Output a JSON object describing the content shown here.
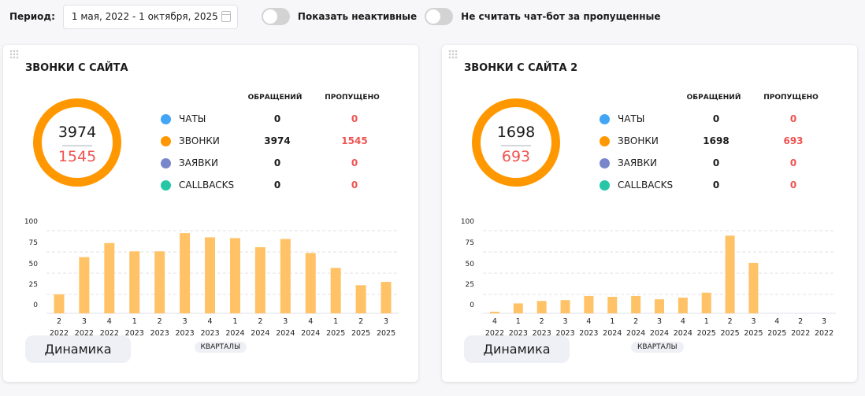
{
  "filters": {
    "period_label": "Период:",
    "period_value": "1 мая, 2022 - 1 октября, 2025",
    "show_inactive_label": "Показать неактивные",
    "show_inactive": false,
    "chatbot_label": "Не считать чат-бот за пропущенные",
    "chatbot": false
  },
  "columns": {
    "requests": "ОБРАЩЕНИЙ",
    "missed": "ПРОПУЩЕНО"
  },
  "colors": {
    "chats": "#42a5f5",
    "calls": "#ff9800",
    "requests": "#7986cb",
    "callbacks": "#26c6a6",
    "missed": "#ef5350",
    "bar": "#ffc266"
  },
  "cards": [
    {
      "title": "ЗВОНКИ С САЙТА",
      "total": "3974",
      "missed": "1545",
      "rows": [
        {
          "name": "ЧАТЫ",
          "count": "0",
          "missed": "0"
        },
        {
          "name": "ЗВОНКИ",
          "count": "3974",
          "missed": "1545"
        },
        {
          "name": "ЗАЯВКИ",
          "count": "0",
          "missed": "0"
        },
        {
          "name": "CALLBACKS",
          "count": "0",
          "missed": "0"
        }
      ],
      "dynamics_button": "Динамика",
      "axis_pill": "КВАРТАЛЫ"
    },
    {
      "title": "ЗВОНКИ С САЙТА 2",
      "total": "1698",
      "missed": "693",
      "rows": [
        {
          "name": "ЧАТЫ",
          "count": "0",
          "missed": "0"
        },
        {
          "name": "ЗВОНКИ",
          "count": "1698",
          "missed": "693"
        },
        {
          "name": "ЗАЯВКИ",
          "count": "0",
          "missed": "0"
        },
        {
          "name": "CALLBACKS",
          "count": "0",
          "missed": "0"
        }
      ],
      "dynamics_button": "Динамика",
      "axis_pill": "КВАРТАЛЫ"
    }
  ],
  "chart_data": [
    {
      "type": "bar",
      "xlabel": "КВАРТАЛЫ",
      "ylim": [
        0,
        100
      ],
      "yticks": [
        "100",
        "75",
        "50",
        "25",
        "0"
      ],
      "categories": [
        [
          "2",
          "2022"
        ],
        [
          "3",
          "2022"
        ],
        [
          "4",
          "2022"
        ],
        [
          "1",
          "2023"
        ],
        [
          "2",
          "2023"
        ],
        [
          "3",
          "2023"
        ],
        [
          "4",
          "2023"
        ],
        [
          "1",
          "2024"
        ],
        [
          "2",
          "2024"
        ],
        [
          "3",
          "2024"
        ],
        [
          "4",
          "2024"
        ],
        [
          "1",
          "2025"
        ],
        [
          "2",
          "2025"
        ],
        [
          "3",
          "2025"
        ]
      ],
      "values": [
        23,
        68,
        85,
        75,
        75,
        97,
        92,
        91,
        80,
        90,
        73,
        55,
        34,
        38
      ]
    },
    {
      "type": "bar",
      "xlabel": "КВАРТАЛЫ",
      "ylim": [
        0,
        100
      ],
      "yticks": [
        "100",
        "75",
        "50",
        "25",
        "0"
      ],
      "categories": [
        [
          "4",
          "2022"
        ],
        [
          "1",
          "2023"
        ],
        [
          "2",
          "2023"
        ],
        [
          "3",
          "2023"
        ],
        [
          "4",
          "2023"
        ],
        [
          "1",
          "2024"
        ],
        [
          "2",
          "2024"
        ],
        [
          "3",
          "2024"
        ],
        [
          "4",
          "2024"
        ],
        [
          "1",
          "2025"
        ],
        [
          "2",
          "2025"
        ],
        [
          "3",
          "2025"
        ],
        [
          "4",
          "2025"
        ],
        [
          "2",
          "2022"
        ],
        [
          "3",
          "2022"
        ]
      ],
      "values": [
        2,
        12,
        15,
        16,
        21,
        20,
        21,
        17,
        19,
        25,
        94,
        61,
        0,
        0,
        0
      ]
    }
  ]
}
